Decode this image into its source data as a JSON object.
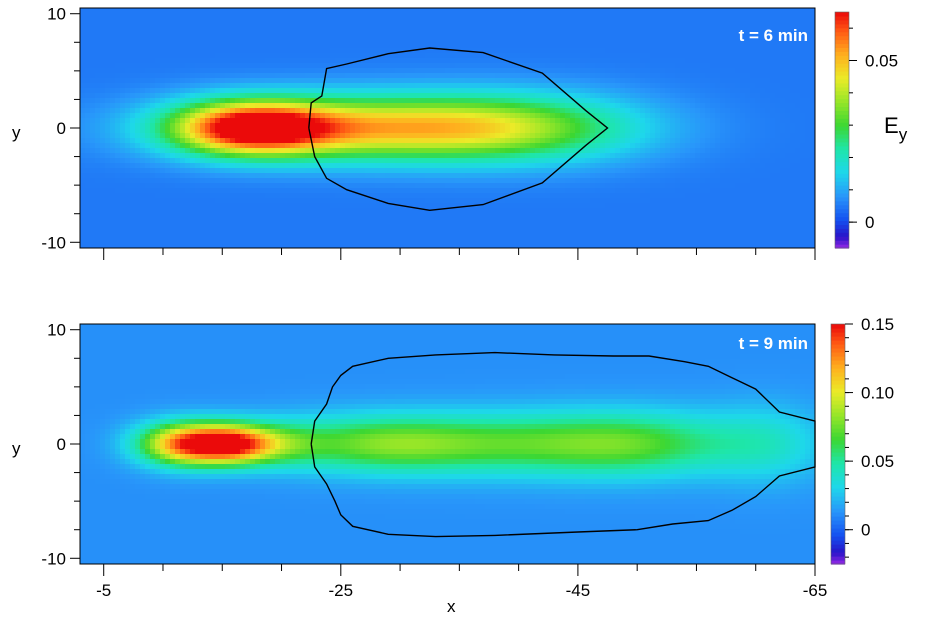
{
  "chart_data": [
    {
      "type": "heatmap",
      "annotation": "t = 6 min",
      "ylabel": "y",
      "colorbar": {
        "title": "E",
        "title_subscript": "y",
        "range": [
          -0.008,
          0.065
        ],
        "ticks": [
          0,
          0.05
        ],
        "tick_labels": [
          "0",
          "0.05"
        ]
      },
      "xlim": [
        -3,
        -65
      ],
      "ylim": [
        -10.5,
        10.5
      ],
      "yticks": [
        10,
        0,
        -10
      ],
      "ytick_labels": [
        "10",
        "0",
        "-10"
      ],
      "background_value": 0.005,
      "field": [
        {
          "x": -17.5,
          "y": 0,
          "peak": 0.057,
          "sx": 4.5,
          "sy": 1.6
        },
        {
          "x": -26.0,
          "y": 0,
          "peak": 0.042,
          "sx": 10.0,
          "sy": 1.9
        },
        {
          "x": -39.0,
          "y": 0,
          "peak": 0.03,
          "sx": 8.0,
          "sy": 2.1
        }
      ],
      "contour": [
        [
          -22.3,
          0
        ],
        [
          -22.5,
          2.2
        ],
        [
          -23.4,
          2.8
        ],
        [
          -23.8,
          5.2
        ],
        [
          -25.5,
          5.6
        ],
        [
          -29,
          6.5
        ],
        [
          -32.5,
          7.0
        ],
        [
          -37,
          6.6
        ],
        [
          -42,
          4.8
        ],
        [
          -45.7,
          1.5
        ],
        [
          -47.5,
          0
        ],
        [
          -45.7,
          -1.5
        ],
        [
          -42,
          -4.8
        ],
        [
          -37,
          -6.7
        ],
        [
          -32.5,
          -7.2
        ],
        [
          -29,
          -6.6
        ],
        [
          -25.5,
          -5.4
        ],
        [
          -23.8,
          -4.4
        ],
        [
          -22.8,
          -2.5
        ],
        [
          -22.3,
          0
        ]
      ]
    },
    {
      "type": "heatmap",
      "annotation": "t = 9 min",
      "xlabel": "x",
      "ylabel": "y",
      "colorbar": {
        "title": "",
        "range": [
          -0.025,
          0.15
        ],
        "ticks": [
          0,
          0.05,
          0.1,
          0.15
        ],
        "tick_labels": [
          "0",
          "0.05",
          "0.10",
          "0.15"
        ]
      },
      "xlim": [
        -3,
        -65
      ],
      "ylim": [
        -10.5,
        10.5
      ],
      "xticks": [
        -5,
        -25,
        -45,
        -65
      ],
      "xtick_labels": [
        "-5",
        "-25",
        "-45",
        "-65"
      ],
      "yticks": [
        10,
        0,
        -10
      ],
      "ytick_labels": [
        "10",
        "0",
        "-10"
      ],
      "background_value": 0.012,
      "field": [
        {
          "x": -12.0,
          "y": 0,
          "peak": 0.13,
          "sx": 2.8,
          "sy": 1.3
        },
        {
          "x": -16.0,
          "y": 0,
          "peak": 0.115,
          "sx": 2.4,
          "sy": 1.2
        },
        {
          "x": -20.0,
          "y": 0,
          "peak": 0.045,
          "sx": 2.5,
          "sy": 1.3
        },
        {
          "x": -28.0,
          "y": 0,
          "peak": 0.062,
          "sx": 6.0,
          "sy": 1.7
        },
        {
          "x": -40.0,
          "y": 0,
          "peak": 0.058,
          "sx": 9.0,
          "sy": 1.9
        },
        {
          "x": -50.0,
          "y": 0,
          "peak": 0.05,
          "sx": 6.0,
          "sy": 2.0
        },
        {
          "x": -61.0,
          "y": 0,
          "peak": 0.035,
          "sx": 3.5,
          "sy": 2.4
        }
      ],
      "contour": [
        [
          -22.5,
          0
        ],
        [
          -22.8,
          2.0
        ],
        [
          -23.8,
          3.5
        ],
        [
          -24.3,
          5.0
        ],
        [
          -25,
          6.0
        ],
        [
          -26,
          6.8
        ],
        [
          -29,
          7.5
        ],
        [
          -33,
          7.8
        ],
        [
          -38,
          8.0
        ],
        [
          -43,
          7.8
        ],
        [
          -48,
          7.7
        ],
        [
          -51,
          7.7
        ],
        [
          -54,
          7.2
        ],
        [
          -56,
          6.8
        ],
        [
          -58,
          5.8
        ],
        [
          -60,
          4.8
        ],
        [
          -62,
          2.8
        ],
        [
          -65,
          2.0
        ],
        [
          -65,
          -2.0
        ],
        [
          -62,
          -2.8
        ],
        [
          -60,
          -4.6
        ],
        [
          -58,
          -5.8
        ],
        [
          -56,
          -6.7
        ],
        [
          -53,
          -7.0
        ],
        [
          -50,
          -7.5
        ],
        [
          -45,
          -7.7
        ],
        [
          -38,
          -8.0
        ],
        [
          -33,
          -8.1
        ],
        [
          -29,
          -7.9
        ],
        [
          -26,
          -7.2
        ],
        [
          -25,
          -6.2
        ],
        [
          -24.5,
          -5.0
        ],
        [
          -23.8,
          -3.5
        ],
        [
          -22.8,
          -2.0
        ],
        [
          -22.5,
          0
        ]
      ]
    }
  ]
}
